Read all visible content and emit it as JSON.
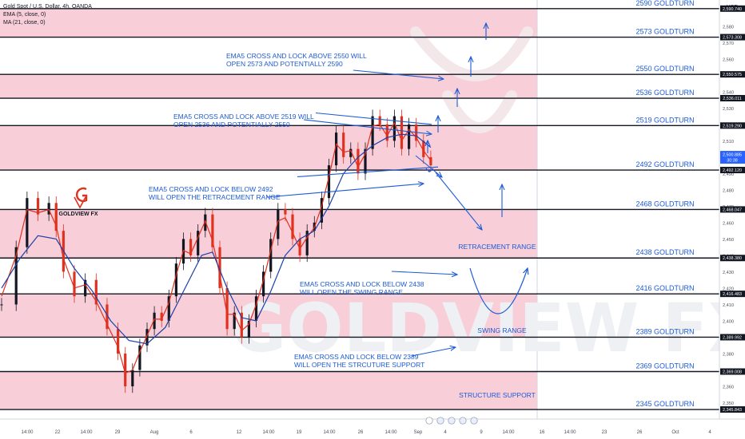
{
  "header": {
    "symbol": "Gold Spot / U.S. Dollar, 4h, OANDA",
    "ema": "EMA (5, close, 0)",
    "ma": "MA (21, close, 0)",
    "currency": "USD"
  },
  "colors": {
    "zone": "#f8cfd8",
    "line": "#131722",
    "annotation": "#1c5bd6",
    "candle_up": "#131722",
    "candle_down": "#e0301e",
    "ema": "#e0301e",
    "ma": "#1c3fa8",
    "price_badge": "#2962ff"
  },
  "chart_data": {
    "type": "line",
    "title": "",
    "xlabel": "",
    "ylabel": "",
    "ylim": [
      2340,
      2596
    ],
    "x_ticks": [
      "14:00",
      "22",
      "14:00",
      "29",
      "Aug",
      "6",
      "12",
      "14:00",
      "19",
      "14:00",
      "26",
      "14:00",
      "Sep",
      "4",
      "9",
      "14:00",
      "16",
      "14:00",
      "23",
      "26",
      "Oct",
      "4"
    ],
    "y_ticks": [
      2350,
      2360,
      2370,
      2380,
      2390,
      2400,
      2410,
      2420,
      2430,
      2440,
      2450,
      2460,
      2470,
      2480,
      2490,
      2500,
      2510,
      2520,
      2530,
      2540,
      2550,
      2560,
      2570,
      2580
    ],
    "levels": [
      {
        "value": 2590.74,
        "label": "2,590.740",
        "name": "2590 GOLDTURN"
      },
      {
        "value": 2573.308,
        "label": "2,573.308",
        "name": "2573 GOLDTURN"
      },
      {
        "value": 2550.575,
        "label": "2,550.575",
        "name": "2550 GOLDTURN"
      },
      {
        "value": 2536.011,
        "label": "2,536.011",
        "name": "2536 GOLDTURN"
      },
      {
        "value": 2519.29,
        "label": "2,519.290",
        "name": "2519 GOLDTURN"
      },
      {
        "value": 2492.12,
        "label": "2,492.120",
        "name": "2492 GOLDTURN"
      },
      {
        "value": 2468.047,
        "label": "2,468.047",
        "name": "2468 GOLDTURN"
      },
      {
        "value": 2438.38,
        "label": "2,438.380",
        "name": "2438 GOLDTURN"
      },
      {
        "value": 2416.483,
        "label": "2,416.483",
        "name": "2416 GOLDTURN"
      },
      {
        "value": 2389.992,
        "label": "2,389.992",
        "name": "2389 GOLDTURN"
      },
      {
        "value": 2369.008,
        "label": "2,369.008",
        "name": "2369 GOLDTURN"
      },
      {
        "value": 2345.843,
        "label": "2,345.843",
        "name": "2345 GOLDTURN"
      }
    ],
    "zones": [
      [
        2573.308,
        2590.74
      ],
      [
        2536.011,
        2550.575
      ],
      [
        2492.12,
        2519.29
      ],
      [
        2438.38,
        2468.047
      ],
      [
        2389.992,
        2416.483
      ],
      [
        2345.843,
        2369.008
      ]
    ],
    "current_price": {
      "value": 2500.885,
      "label": "2,500.885",
      "countdown": "30:38"
    },
    "price_path": [
      [
        0,
        2410
      ],
      [
        4,
        2445
      ],
      [
        7,
        2475
      ],
      [
        10,
        2465
      ],
      [
        13,
        2472
      ],
      [
        15,
        2455
      ],
      [
        17,
        2430
      ],
      [
        20,
        2415
      ],
      [
        23,
        2425
      ],
      [
        26,
        2410
      ],
      [
        29,
        2395
      ],
      [
        32,
        2380
      ],
      [
        34,
        2360
      ],
      [
        36,
        2370
      ],
      [
        38,
        2385
      ],
      [
        40,
        2395
      ],
      [
        42,
        2405
      ],
      [
        44,
        2400
      ],
      [
        46,
        2415
      ],
      [
        48,
        2435
      ],
      [
        50,
        2450
      ],
      [
        52,
        2440
      ],
      [
        54,
        2455
      ],
      [
        56,
        2465
      ],
      [
        58,
        2445
      ],
      [
        60,
        2420
      ],
      [
        62,
        2395
      ],
      [
        64,
        2405
      ],
      [
        66,
        2390
      ],
      [
        68,
        2400
      ],
      [
        70,
        2415
      ],
      [
        72,
        2430
      ],
      [
        74,
        2450
      ],
      [
        76,
        2468
      ],
      [
        78,
        2465
      ],
      [
        80,
        2450
      ],
      [
        82,
        2440
      ],
      [
        84,
        2455
      ],
      [
        86,
        2460
      ],
      [
        88,
        2475
      ],
      [
        90,
        2495
      ],
      [
        92,
        2515
      ],
      [
        94,
        2500
      ],
      [
        96,
        2505
      ],
      [
        98,
        2490
      ],
      [
        100,
        2505
      ],
      [
        102,
        2525
      ],
      [
        104,
        2520
      ],
      [
        106,
        2510
      ],
      [
        108,
        2525
      ],
      [
        110,
        2505
      ],
      [
        112,
        2520
      ],
      [
        114,
        2510
      ],
      [
        116,
        2500
      ],
      [
        118,
        2495
      ]
    ],
    "ema_path": [
      [
        0,
        2415
      ],
      [
        4,
        2440
      ],
      [
        7,
        2468
      ],
      [
        10,
        2466
      ],
      [
        13,
        2468
      ],
      [
        15,
        2458
      ],
      [
        17,
        2438
      ],
      [
        20,
        2420
      ],
      [
        23,
        2422
      ],
      [
        26,
        2412
      ],
      [
        29,
        2398
      ],
      [
        32,
        2384
      ],
      [
        34,
        2368
      ],
      [
        36,
        2370
      ],
      [
        38,
        2381
      ],
      [
        40,
        2391
      ],
      [
        42,
        2401
      ],
      [
        44,
        2401
      ],
      [
        46,
        2411
      ],
      [
        48,
        2428
      ],
      [
        50,
        2443
      ],
      [
        52,
        2441
      ],
      [
        54,
        2451
      ],
      [
        56,
        2461
      ],
      [
        58,
        2449
      ],
      [
        60,
        2428
      ],
      [
        62,
        2404
      ],
      [
        64,
        2404
      ],
      [
        66,
        2394
      ],
      [
        68,
        2398
      ],
      [
        70,
        2410
      ],
      [
        72,
        2425
      ],
      [
        74,
        2443
      ],
      [
        76,
        2461
      ],
      [
        78,
        2463
      ],
      [
        80,
        2454
      ],
      [
        82,
        2444
      ],
      [
        84,
        2451
      ],
      [
        86,
        2457
      ],
      [
        88,
        2470
      ],
      [
        90,
        2488
      ],
      [
        92,
        2508
      ],
      [
        94,
        2503
      ],
      [
        96,
        2504
      ],
      [
        98,
        2494
      ],
      [
        100,
        2502
      ],
      [
        102,
        2519
      ],
      [
        104,
        2520
      ],
      [
        106,
        2513
      ],
      [
        108,
        2521
      ],
      [
        110,
        2510
      ],
      [
        112,
        2517
      ],
      [
        114,
        2512
      ],
      [
        116,
        2504
      ],
      [
        118,
        2498
      ]
    ],
    "ma_path": [
      [
        0,
        2420
      ],
      [
        5,
        2438
      ],
      [
        10,
        2452
      ],
      [
        15,
        2450
      ],
      [
        20,
        2432
      ],
      [
        25,
        2418
      ],
      [
        30,
        2400
      ],
      [
        35,
        2388
      ],
      [
        40,
        2386
      ],
      [
        45,
        2396
      ],
      [
        50,
        2418
      ],
      [
        55,
        2440
      ],
      [
        58,
        2442
      ],
      [
        62,
        2420
      ],
      [
        66,
        2402
      ],
      [
        70,
        2400
      ],
      [
        74,
        2418
      ],
      [
        78,
        2440
      ],
      [
        82,
        2450
      ],
      [
        86,
        2455
      ],
      [
        90,
        2470
      ],
      [
        94,
        2490
      ],
      [
        98,
        2500
      ],
      [
        102,
        2507
      ],
      [
        106,
        2512
      ],
      [
        110,
        2514
      ],
      [
        114,
        2513
      ],
      [
        118,
        2506
      ]
    ],
    "annotations": [
      {
        "text": [
          "EMA5 CROSS AND LOCK ABOVE 2550 WILL",
          "OPEN 2573 AND POTENTIALLY 2590"
        ]
      },
      {
        "text": [
          "EMA5 CROSS AND LOCK ABOVE 2519 WILL",
          "OPEN 2536 AND POTENTIALLY 2550"
        ]
      },
      {
        "text": [
          "EMA5 CROSS AND LOCK BELOW 2492",
          "WILL OPEN THE RETRACEMENT RANGE"
        ]
      },
      {
        "text": [
          "EMA5 CROSS AND LOCK BELOW 2438",
          "WILL OPEN THE SWING RANGE"
        ]
      },
      {
        "text": [
          "EMA5 CROSS AND LOCK BELOW 2389",
          "WILL OPEN THE STRCUTURE SUPPORT"
        ]
      },
      {
        "text": [
          "RETRACEMENT RANGE"
        ]
      },
      {
        "text": [
          "SWING RANGE"
        ]
      },
      {
        "text": [
          "STRUCTURE SUPPORT"
        ]
      }
    ],
    "logo_text": "GOLDVIEW FX",
    "watermark": "GOLDVIEW FX"
  }
}
